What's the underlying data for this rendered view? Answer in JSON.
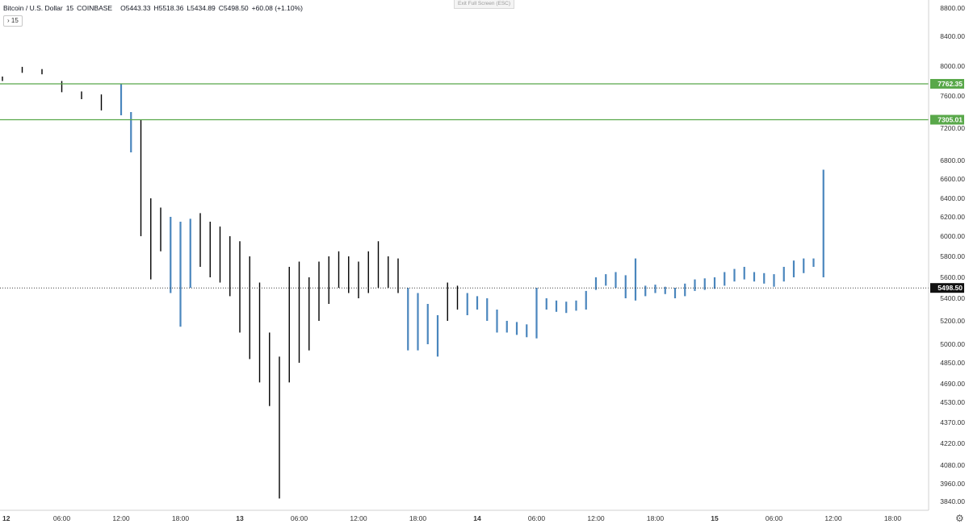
{
  "legend": {
    "symbol": "Bitcoin / U.S. Dollar",
    "interval": "15",
    "exchange": "COINBASE",
    "open": "O5443.33",
    "high": "H5518.36",
    "low": "L5434.89",
    "close": "C5498.50",
    "change": "+60.08 (+1.10%)"
  },
  "interval_button": "› 15",
  "exit_fullscreen": "Exit Full Screen (ESC)",
  "colors": {
    "up_wick": "#000000",
    "up_bar": "#4a86bd",
    "level_line": "#59a84a",
    "label_current": "#111111"
  },
  "chart_data": {
    "type": "bar",
    "title": "",
    "xlabel": "",
    "ylabel": "",
    "price_ticks": [
      "8800.00",
      "8400.00",
      "8000.00",
      "7600.00",
      "7200.00",
      "6800.00",
      "6600.00",
      "6400.00",
      "6200.00",
      "6000.00",
      "5800.00",
      "5600.00",
      "5400.00",
      "5200.00",
      "5000.00",
      "4850.00",
      "4690.00",
      "4530.00",
      "4370.00",
      "4220.00",
      "4080.00",
      "3960.00",
      "3840.00"
    ],
    "time_ticks": [
      {
        "label": "12",
        "bold": true
      },
      {
        "label": "06:00",
        "bold": false
      },
      {
        "label": "12:00",
        "bold": false
      },
      {
        "label": "18:00",
        "bold": false
      },
      {
        "label": "13",
        "bold": true
      },
      {
        "label": "06:00",
        "bold": false
      },
      {
        "label": "12:00",
        "bold": false
      },
      {
        "label": "18:00",
        "bold": false
      },
      {
        "label": "14",
        "bold": true
      },
      {
        "label": "06:00",
        "bold": false
      },
      {
        "label": "12:00",
        "bold": false
      },
      {
        "label": "18:00",
        "bold": false
      },
      {
        "label": "15",
        "bold": true
      },
      {
        "label": "06:00",
        "bold": false
      },
      {
        "label": "12:00",
        "bold": false
      },
      {
        "label": "18:00",
        "bold": false
      }
    ],
    "levels": [
      {
        "value": "7762.35",
        "style": "resistance"
      },
      {
        "value": "7305.01",
        "style": "resistance"
      }
    ],
    "current_price": "5498.50",
    "candles_hours": [
      {
        "t": 0,
        "low": 7800,
        "high": 7860
      },
      {
        "t": 2,
        "low": 7910,
        "high": 7990
      },
      {
        "t": 4,
        "low": 7890,
        "high": 7960
      },
      {
        "t": 6,
        "low": 7650,
        "high": 7800
      },
      {
        "t": 8,
        "low": 7560,
        "high": 7660
      },
      {
        "t": 10,
        "low": 7420,
        "high": 7620
      },
      {
        "t": 12,
        "low": 7360,
        "high": 7762
      },
      {
        "t": 13,
        "low": 6900,
        "high": 7400
      },
      {
        "t": 14,
        "low": 6000,
        "high": 7300
      },
      {
        "t": 15,
        "low": 5580,
        "high": 6400
      },
      {
        "t": 16,
        "low": 5850,
        "high": 6300
      },
      {
        "t": 17,
        "low": 5450,
        "high": 6200
      },
      {
        "t": 18,
        "low": 5150,
        "high": 6150
      },
      {
        "t": 19,
        "low": 5500,
        "high": 6180
      },
      {
        "t": 20,
        "low": 5700,
        "high": 6240
      },
      {
        "t": 21,
        "low": 5600,
        "high": 6150
      },
      {
        "t": 22,
        "low": 5550,
        "high": 6100
      },
      {
        "t": 23,
        "low": 5420,
        "high": 6000
      },
      {
        "t": 24,
        "low": 5100,
        "high": 5950
      },
      {
        "t": 25,
        "low": 4880,
        "high": 5800
      },
      {
        "t": 26,
        "low": 4700,
        "high": 5550
      },
      {
        "t": 27,
        "low": 4500,
        "high": 5100
      },
      {
        "t": 28,
        "low": 3860,
        "high": 4900
      },
      {
        "t": 29,
        "low": 4700,
        "high": 5700
      },
      {
        "t": 30,
        "low": 4850,
        "high": 5750
      },
      {
        "t": 31,
        "low": 4950,
        "high": 5600
      },
      {
        "t": 32,
        "low": 5200,
        "high": 5750
      },
      {
        "t": 33,
        "low": 5350,
        "high": 5800
      },
      {
        "t": 34,
        "low": 5500,
        "high": 5850
      },
      {
        "t": 35,
        "low": 5450,
        "high": 5800
      },
      {
        "t": 36,
        "low": 5400,
        "high": 5750
      },
      {
        "t": 37,
        "low": 5450,
        "high": 5850
      },
      {
        "t": 38,
        "low": 5500,
        "high": 5950
      },
      {
        "t": 39,
        "low": 5500,
        "high": 5800
      },
      {
        "t": 40,
        "low": 5450,
        "high": 5780
      },
      {
        "t": 41,
        "low": 4950,
        "high": 5500
      },
      {
        "t": 42,
        "low": 4950,
        "high": 5450
      },
      {
        "t": 43,
        "low": 5000,
        "high": 5350
      },
      {
        "t": 44,
        "low": 4900,
        "high": 5250
      },
      {
        "t": 45,
        "low": 5200,
        "high": 5550
      },
      {
        "t": 46,
        "low": 5300,
        "high": 5520
      },
      {
        "t": 47,
        "low": 5250,
        "high": 5450
      },
      {
        "t": 48,
        "low": 5300,
        "high": 5420
      },
      {
        "t": 49,
        "low": 5200,
        "high": 5400
      },
      {
        "t": 50,
        "low": 5100,
        "high": 5300
      },
      {
        "t": 51,
        "low": 5100,
        "high": 5200
      },
      {
        "t": 52,
        "low": 5080,
        "high": 5190
      },
      {
        "t": 53,
        "low": 5060,
        "high": 5170
      },
      {
        "t": 54,
        "low": 5050,
        "high": 5500
      },
      {
        "t": 55,
        "low": 5300,
        "high": 5400
      },
      {
        "t": 56,
        "low": 5280,
        "high": 5380
      },
      {
        "t": 57,
        "low": 5270,
        "high": 5370
      },
      {
        "t": 58,
        "low": 5290,
        "high": 5380
      },
      {
        "t": 59,
        "low": 5300,
        "high": 5470
      },
      {
        "t": 60,
        "low": 5480,
        "high": 5600
      },
      {
        "t": 61,
        "low": 5520,
        "high": 5630
      },
      {
        "t": 62,
        "low": 5500,
        "high": 5650
      },
      {
        "t": 63,
        "low": 5400,
        "high": 5620
      },
      {
        "t": 64,
        "low": 5380,
        "high": 5780
      },
      {
        "t": 65,
        "low": 5420,
        "high": 5520
      },
      {
        "t": 66,
        "low": 5450,
        "high": 5530
      },
      {
        "t": 67,
        "low": 5440,
        "high": 5510
      },
      {
        "t": 68,
        "low": 5400,
        "high": 5500
      },
      {
        "t": 69,
        "low": 5420,
        "high": 5540
      },
      {
        "t": 70,
        "low": 5470,
        "high": 5580
      },
      {
        "t": 71,
        "low": 5480,
        "high": 5590
      },
      {
        "t": 72,
        "low": 5490,
        "high": 5600
      },
      {
        "t": 73,
        "low": 5520,
        "high": 5650
      },
      {
        "t": 74,
        "low": 5560,
        "high": 5680
      },
      {
        "t": 75,
        "low": 5580,
        "high": 5700
      },
      {
        "t": 76,
        "low": 5560,
        "high": 5650
      },
      {
        "t": 77,
        "low": 5540,
        "high": 5640
      },
      {
        "t": 78,
        "low": 5510,
        "high": 5630
      },
      {
        "t": 79,
        "low": 5560,
        "high": 5700
      },
      {
        "t": 80,
        "low": 5600,
        "high": 5760
      },
      {
        "t": 81,
        "low": 5640,
        "high": 5780
      },
      {
        "t": 82,
        "low": 5700,
        "high": 5780
      },
      {
        "t": 83,
        "low": 5600,
        "high": 6700
      }
    ]
  }
}
